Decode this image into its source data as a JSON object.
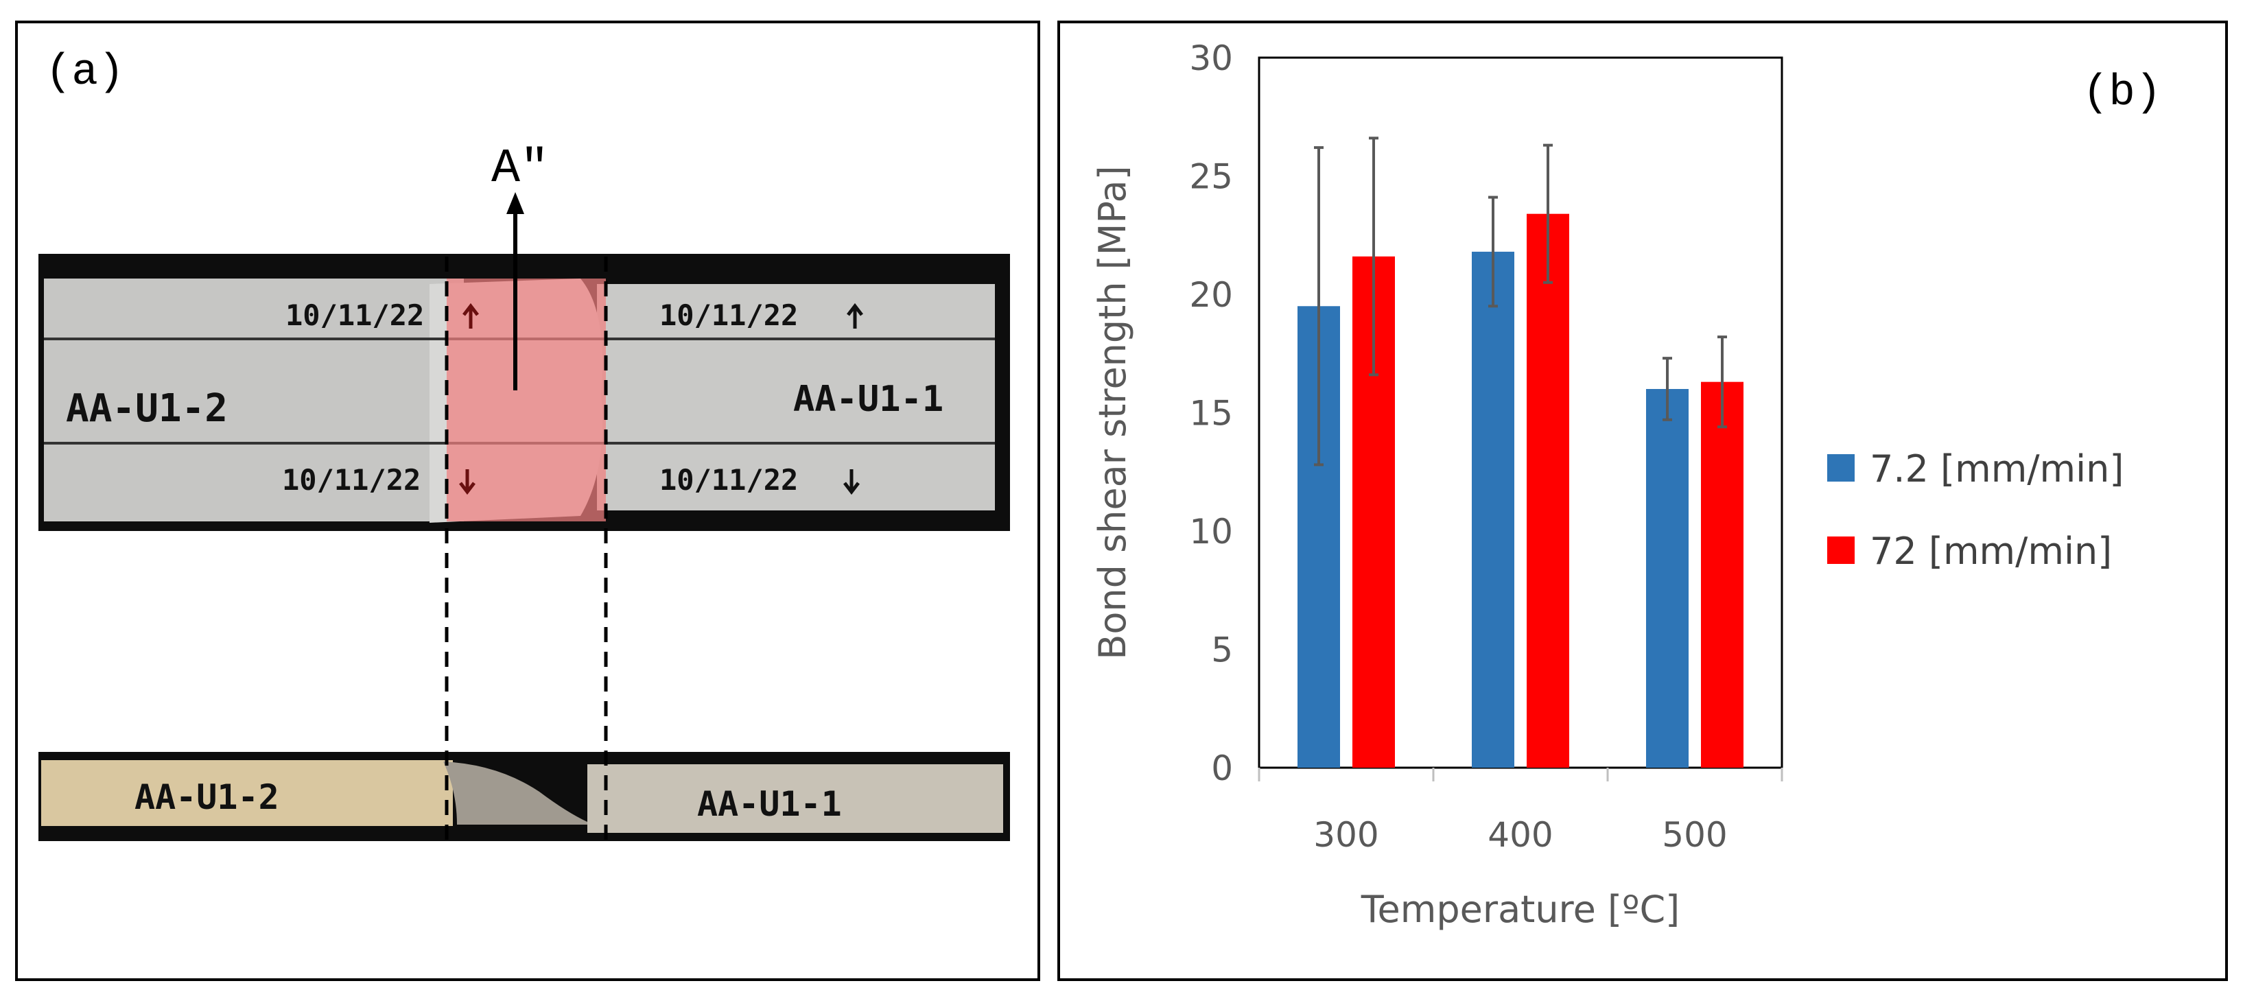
{
  "panel_a": {
    "label": "(a)",
    "arrow_label": "A″",
    "top_specimen": {
      "left_id": "AA-U1-2",
      "right_id": "AA-U1-1",
      "date_labels": [
        "10/11/22",
        "10/11/22",
        "10/11/22",
        "10/11/22"
      ]
    },
    "bottom_specimen": {
      "left_id": "AA-U1-2",
      "right_id": "AA-U1-1"
    },
    "highlight_color": "#f08080"
  },
  "chart_data": {
    "type": "bar",
    "panel_label": "(b)",
    "categories": [
      "300",
      "400",
      "500"
    ],
    "xlabel": "Temperature [ºC]",
    "ylabel": "Bond shear strength [MPa]",
    "ylim": [
      0,
      30
    ],
    "yticks": [
      "0",
      "5",
      "10",
      "15",
      "20",
      "25",
      "30"
    ],
    "grid": false,
    "legend_position": "right",
    "series": [
      {
        "name": "7.2 [mm/min]",
        "color": "#2e75b6",
        "values": [
          19.5,
          21.8,
          16.0
        ],
        "errors": [
          6.7,
          2.3,
          1.3
        ]
      },
      {
        "name": "72 [mm/min]",
        "color": "#ff0000",
        "values": [
          21.6,
          23.4,
          16.3
        ],
        "errors": [
          5.0,
          2.9,
          1.9
        ]
      }
    ]
  }
}
